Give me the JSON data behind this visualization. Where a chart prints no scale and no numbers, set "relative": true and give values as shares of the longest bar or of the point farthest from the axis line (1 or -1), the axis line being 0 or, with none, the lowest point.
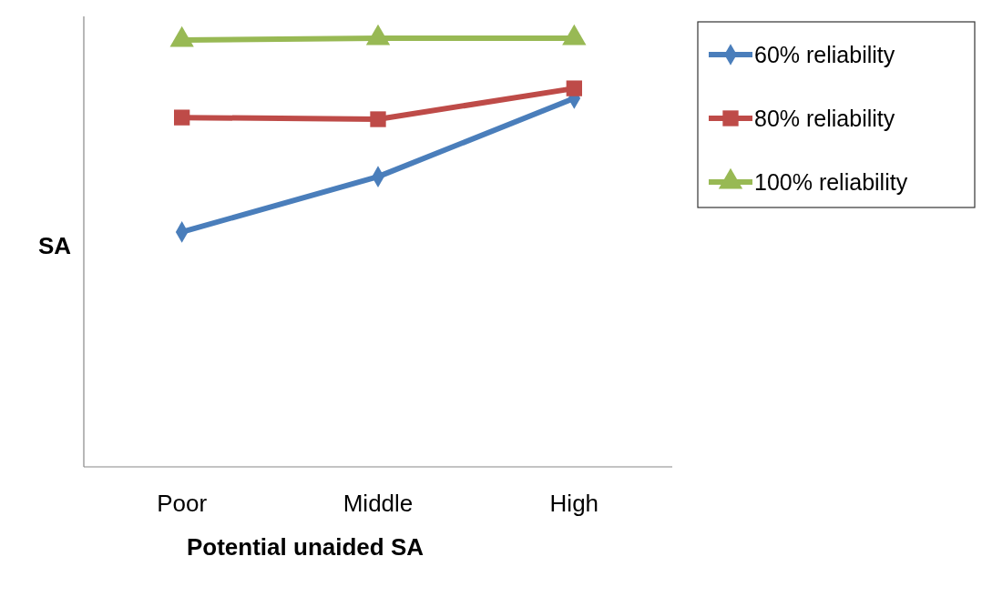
{
  "chart_data": {
    "type": "line",
    "relative": true,
    "ylabel": "SA",
    "xlabel": "Potential unaided SA",
    "categories": [
      "Poor",
      "Middle",
      "High"
    ],
    "series": [
      {
        "name": "60% reliability",
        "color": "#4a7ebb",
        "marker": "diamond",
        "values": [
          0.548,
          0.677,
          0.86
        ]
      },
      {
        "name": "80% reliability",
        "color": "#be4b48",
        "marker": "square",
        "values": [
          0.815,
          0.811,
          0.883
        ]
      },
      {
        "name": "100% reliability",
        "color": "#98b954",
        "marker": "triangle",
        "values": [
          0.996,
          1,
          1
        ]
      }
    ],
    "legend": "top right"
  }
}
